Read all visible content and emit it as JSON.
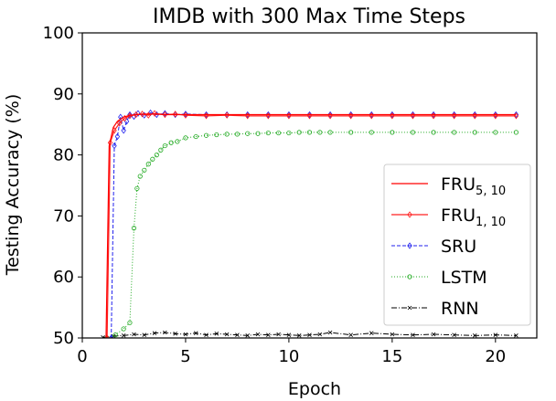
{
  "chart_data": {
    "type": "line",
    "title": "IMDB with 300 Max Time Steps",
    "xlabel": "Epoch",
    "ylabel": "Testing Accuracy (%)",
    "xlim": [
      0,
      22
    ],
    "ylim": [
      50,
      100
    ],
    "xticks": [
      0,
      5,
      10,
      15,
      20
    ],
    "yticks": [
      50,
      60,
      70,
      80,
      90,
      100
    ],
    "grid": false,
    "legend_position": "center-right",
    "series": [
      {
        "name": "FRU",
        "sub": "5, 10",
        "color": "#ff0000",
        "linestyle": "solid",
        "marker": "none",
        "x": [
          1.15,
          1.3,
          1.5,
          1.7,
          2.0,
          2.3,
          2.6,
          3.0,
          3.5,
          4.0,
          5.0,
          6.0,
          8.0,
          10.0,
          12.0,
          15.0,
          18.0,
          21.0
        ],
        "y": [
          50.0,
          81.5,
          84.5,
          85.5,
          86.2,
          86.5,
          86.6,
          86.7,
          86.7,
          86.6,
          86.6,
          86.6,
          86.6,
          86.6,
          86.6,
          86.6,
          86.6,
          86.6
        ]
      },
      {
        "name": "FRU",
        "sub": "1, 10",
        "color": "#ff2020",
        "linestyle": "solid",
        "marker": "diamond",
        "x": [
          1.2,
          1.35,
          1.55,
          1.8,
          2.05,
          2.3,
          2.6,
          2.9,
          3.2,
          3.5,
          4.0,
          4.5,
          5.0,
          6.0,
          7.0,
          8.0,
          9.0,
          10.0,
          11.0,
          12.0,
          13.0,
          14.0,
          15.0,
          16.0,
          17.0,
          18.0,
          19.0,
          20.0,
          21.0
        ],
        "y": [
          50.0,
          82.0,
          84.0,
          85.2,
          86.0,
          86.4,
          86.6,
          86.7,
          86.5,
          86.8,
          86.6,
          86.7,
          86.5,
          86.4,
          86.5,
          86.4,
          86.4,
          86.4,
          86.4,
          86.4,
          86.4,
          86.4,
          86.4,
          86.4,
          86.4,
          86.4,
          86.4,
          86.4,
          86.4
        ]
      },
      {
        "name": "SRU",
        "sub": "",
        "color": "#2222ee",
        "linestyle": "dashed",
        "marker": "diamond",
        "x": [
          1.4,
          1.55,
          1.7,
          1.85,
          2.0,
          2.15,
          2.3,
          2.5,
          2.7,
          3.0,
          3.3,
          3.6,
          4.0,
          4.5,
          5.0,
          6.0,
          7.0,
          8.0,
          9.0,
          10.0,
          11.0,
          12.0,
          13.0,
          14.0,
          15.0,
          16.0,
          17.0,
          18.0,
          19.0,
          20.0,
          21.0
        ],
        "y": [
          50.0,
          81.5,
          83.0,
          86.2,
          84.0,
          85.5,
          86.6,
          86.3,
          86.8,
          86.5,
          86.9,
          86.6,
          86.8,
          86.6,
          86.7,
          86.6,
          86.6,
          86.6,
          86.6,
          86.6,
          86.6,
          86.6,
          86.6,
          86.6,
          86.6,
          86.6,
          86.6,
          86.6,
          86.6,
          86.6,
          86.6
        ]
      },
      {
        "name": "LSTM",
        "sub": "",
        "color": "#22aa22",
        "linestyle": "dotted",
        "marker": "circle",
        "x": [
          1.2,
          1.6,
          2.0,
          2.3,
          2.5,
          2.65,
          2.8,
          3.0,
          3.2,
          3.4,
          3.6,
          3.8,
          4.0,
          4.3,
          4.6,
          5.0,
          5.5,
          6.0,
          6.5,
          7.0,
          7.5,
          8.0,
          8.5,
          9.0,
          9.5,
          10.0,
          10.5,
          11.0,
          11.5,
          12.0,
          13.0,
          14.0,
          15.0,
          16.0,
          17.0,
          18.0,
          19.0,
          20.0,
          21.0
        ],
        "y": [
          50.0,
          50.5,
          51.5,
          52.5,
          68.0,
          74.5,
          76.5,
          77.5,
          78.5,
          79.3,
          80.0,
          80.8,
          81.5,
          82.0,
          82.2,
          82.8,
          83.0,
          83.2,
          83.3,
          83.4,
          83.4,
          83.5,
          83.5,
          83.6,
          83.6,
          83.6,
          83.7,
          83.7,
          83.7,
          83.7,
          83.7,
          83.7,
          83.7,
          83.7,
          83.7,
          83.7,
          83.7,
          83.7,
          83.7
        ]
      },
      {
        "name": "RNN",
        "sub": "",
        "color": "#000000",
        "linestyle": "dashdot",
        "marker": "x",
        "x": [
          1.0,
          1.5,
          2.0,
          2.5,
          3.0,
          3.5,
          4.0,
          4.5,
          5.0,
          5.5,
          6.0,
          6.5,
          7.0,
          7.5,
          8.0,
          8.5,
          9.0,
          9.5,
          10.0,
          10.5,
          11.0,
          11.5,
          12.0,
          13.0,
          14.0,
          15.0,
          16.0,
          17.0,
          18.0,
          19.0,
          20.0,
          21.0
        ],
        "y": [
          50.1,
          50.3,
          50.4,
          50.6,
          50.5,
          50.8,
          50.9,
          50.7,
          50.6,
          50.8,
          50.5,
          50.7,
          50.6,
          50.5,
          50.4,
          50.6,
          50.5,
          50.6,
          50.5,
          50.4,
          50.5,
          50.6,
          50.9,
          50.5,
          50.8,
          50.6,
          50.5,
          50.6,
          50.5,
          50.4,
          50.5,
          50.4
        ]
      }
    ]
  }
}
